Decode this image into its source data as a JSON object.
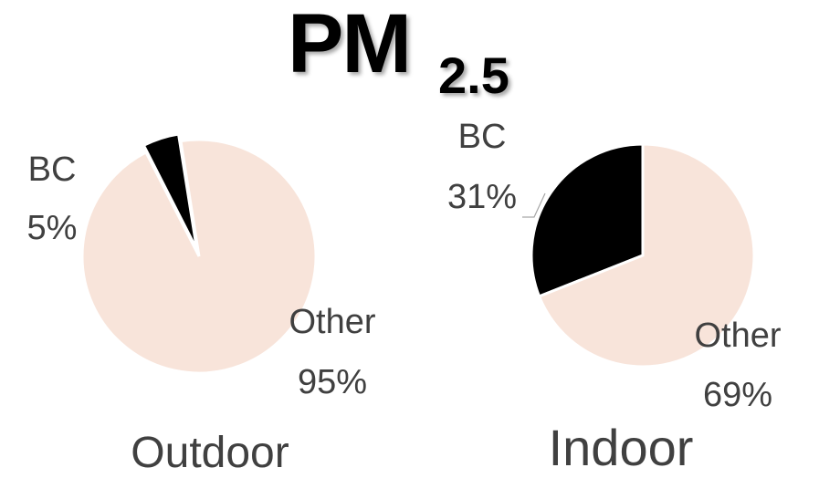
{
  "title": {
    "main": "PM",
    "subscript": "2.5"
  },
  "colors": {
    "bc": "#000000",
    "other": "#f8e4da",
    "text": "#404040",
    "slice_edge": "#ffffff"
  },
  "chart_data": [
    {
      "type": "pie",
      "title": "Outdoor",
      "slices": [
        {
          "label": "BC",
          "value": 5,
          "value_label": "5%"
        },
        {
          "label": "Other",
          "value": 95,
          "value_label": "95%"
        }
      ]
    },
    {
      "type": "pie",
      "title": "Indoor",
      "slices": [
        {
          "label": "BC",
          "value": 31,
          "value_label": "31%"
        },
        {
          "label": "Other",
          "value": 69,
          "value_label": "69%"
        }
      ]
    }
  ]
}
